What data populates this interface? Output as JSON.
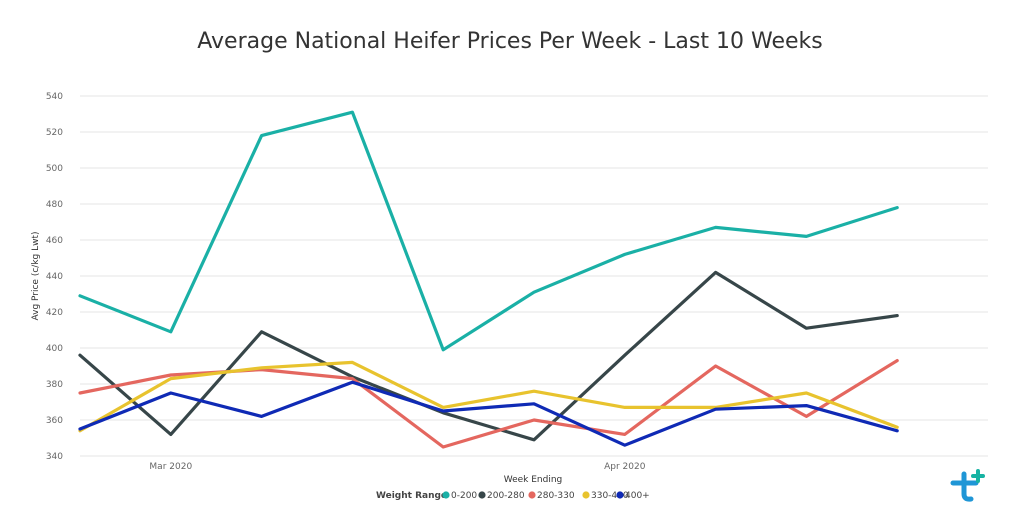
{
  "chart_data": {
    "type": "line",
    "title": "Average National Heifer Prices Per Week - Last 10 Weeks",
    "xlabel": "Week Ending",
    "ylabel": "Avg Price (c/kg Lwt)",
    "x_tick_labels": [
      "Mar 2020",
      "Apr 2020"
    ],
    "x_tick_at_week": [
      2,
      7
    ],
    "x": [
      1,
      2,
      3,
      4,
      5,
      6,
      7,
      8,
      9,
      10,
      11
    ],
    "ylim": [
      340,
      540
    ],
    "y_ticks": [
      340,
      360,
      380,
      400,
      420,
      440,
      460,
      480,
      500,
      520,
      540
    ],
    "grid": true,
    "legend_title": "Weight Range",
    "legend_position": "bottom",
    "series": [
      {
        "name": "0-200",
        "color": "#1ab0a6",
        "values": [
          429,
          409,
          518,
          531,
          399,
          431,
          452,
          467,
          462,
          478,
          null
        ]
      },
      {
        "name": "200-280",
        "color": "#374649",
        "values": [
          396,
          352,
          409,
          384,
          364,
          349,
          396,
          442,
          411,
          418,
          null
        ]
      },
      {
        "name": "280-330",
        "color": "#e4675f",
        "values": [
          375,
          385,
          388,
          383,
          345,
          360,
          352,
          390,
          362,
          393,
          null
        ]
      },
      {
        "name": "330-400",
        "color": "#e8c32e",
        "values": [
          354,
          383,
          389,
          392,
          367,
          376,
          367,
          367,
          375,
          356,
          null
        ]
      },
      {
        "name": "400+",
        "color": "#0f2ab5",
        "values": [
          355,
          375,
          362,
          381,
          365,
          369,
          346,
          366,
          368,
          354,
          null
        ]
      }
    ]
  }
}
